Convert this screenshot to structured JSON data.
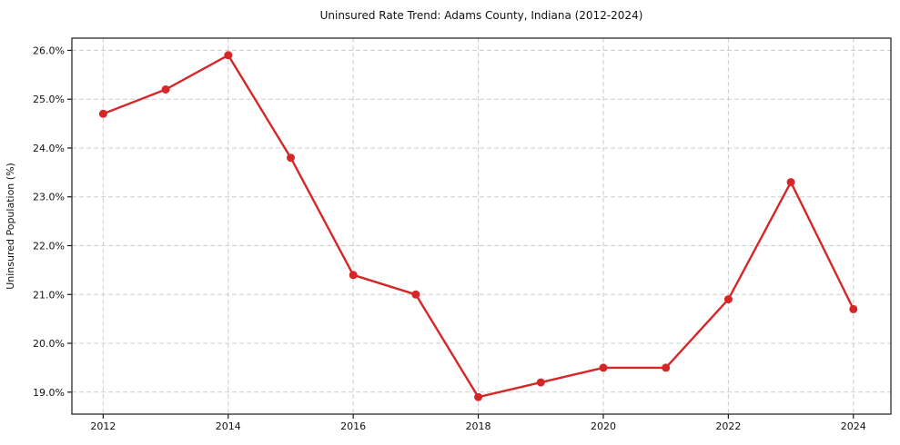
{
  "figure": {
    "background": "#ffffff",
    "frame_color": "#1a1a1a",
    "grid_color": "#cccccc",
    "text_color": "#111111"
  },
  "chart_data": {
    "type": "line",
    "title": "Uninsured Rate Trend: Adams County, Indiana (2012-2024)",
    "xlabel": "",
    "ylabel": "Uninsured Population (%)",
    "x": [
      2012,
      2013,
      2014,
      2015,
      2016,
      2017,
      2018,
      2019,
      2020,
      2021,
      2022,
      2023,
      2024
    ],
    "values": [
      24.7,
      25.2,
      25.9,
      23.8,
      21.4,
      21.0,
      18.9,
      19.2,
      19.5,
      19.5,
      20.9,
      23.3,
      20.7
    ],
    "series_name": "Uninsured rate",
    "line_color": "#d62728",
    "marker": "circle",
    "xticks": {
      "values": [
        2012,
        2014,
        2016,
        2018,
        2020,
        2022,
        2024
      ],
      "labels": [
        "2012",
        "2014",
        "2016",
        "2018",
        "2020",
        "2022",
        "2024"
      ]
    },
    "yticks": {
      "values": [
        19,
        20,
        21,
        22,
        23,
        24,
        25,
        26
      ],
      "labels": [
        "19.0%",
        "20.0%",
        "21.0%",
        "22.0%",
        "23.0%",
        "24.0%",
        "25.0%",
        "26.0%"
      ]
    },
    "xlim": [
      2011.5,
      2024.6
    ],
    "ylim": [
      18.55,
      26.25
    ],
    "grid": "dashed",
    "legend": "none"
  }
}
